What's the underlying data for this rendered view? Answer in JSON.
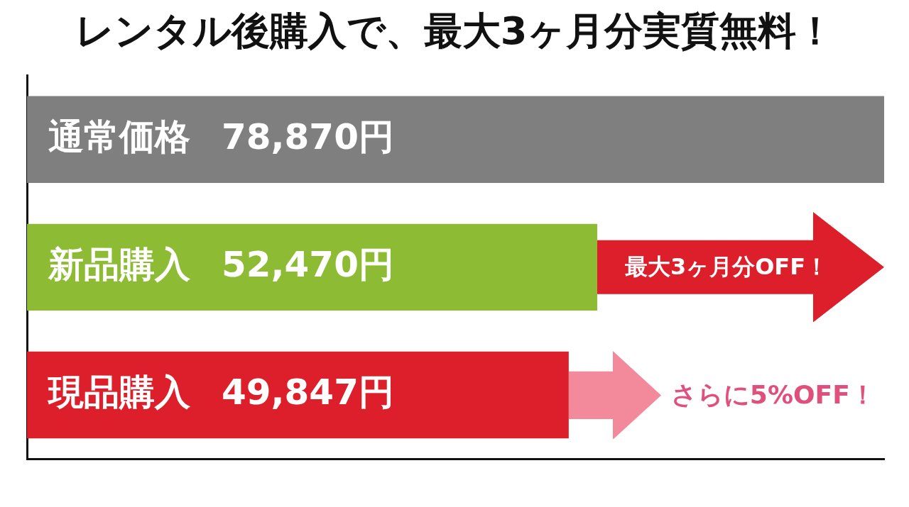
{
  "chart_data": {
    "type": "bar",
    "orientation": "horizontal",
    "title": "レンタル後購入で、最大3ヶ月分実質無料！",
    "categories": [
      "通常価格",
      "新品購入",
      "現品購入"
    ],
    "values": [
      78870,
      52470,
      49847
    ],
    "colors": [
      "#7f7f7f",
      "#8dbb34",
      "#dc1f2b"
    ],
    "value_labels": [
      "78,870円",
      "52,470円",
      "49,847円"
    ],
    "grid": false,
    "legend": false,
    "tick_labels": "y",
    "annotations": [
      "最大3ヶ月分OFF！",
      "さらに5%OFF！"
    ]
  }
}
